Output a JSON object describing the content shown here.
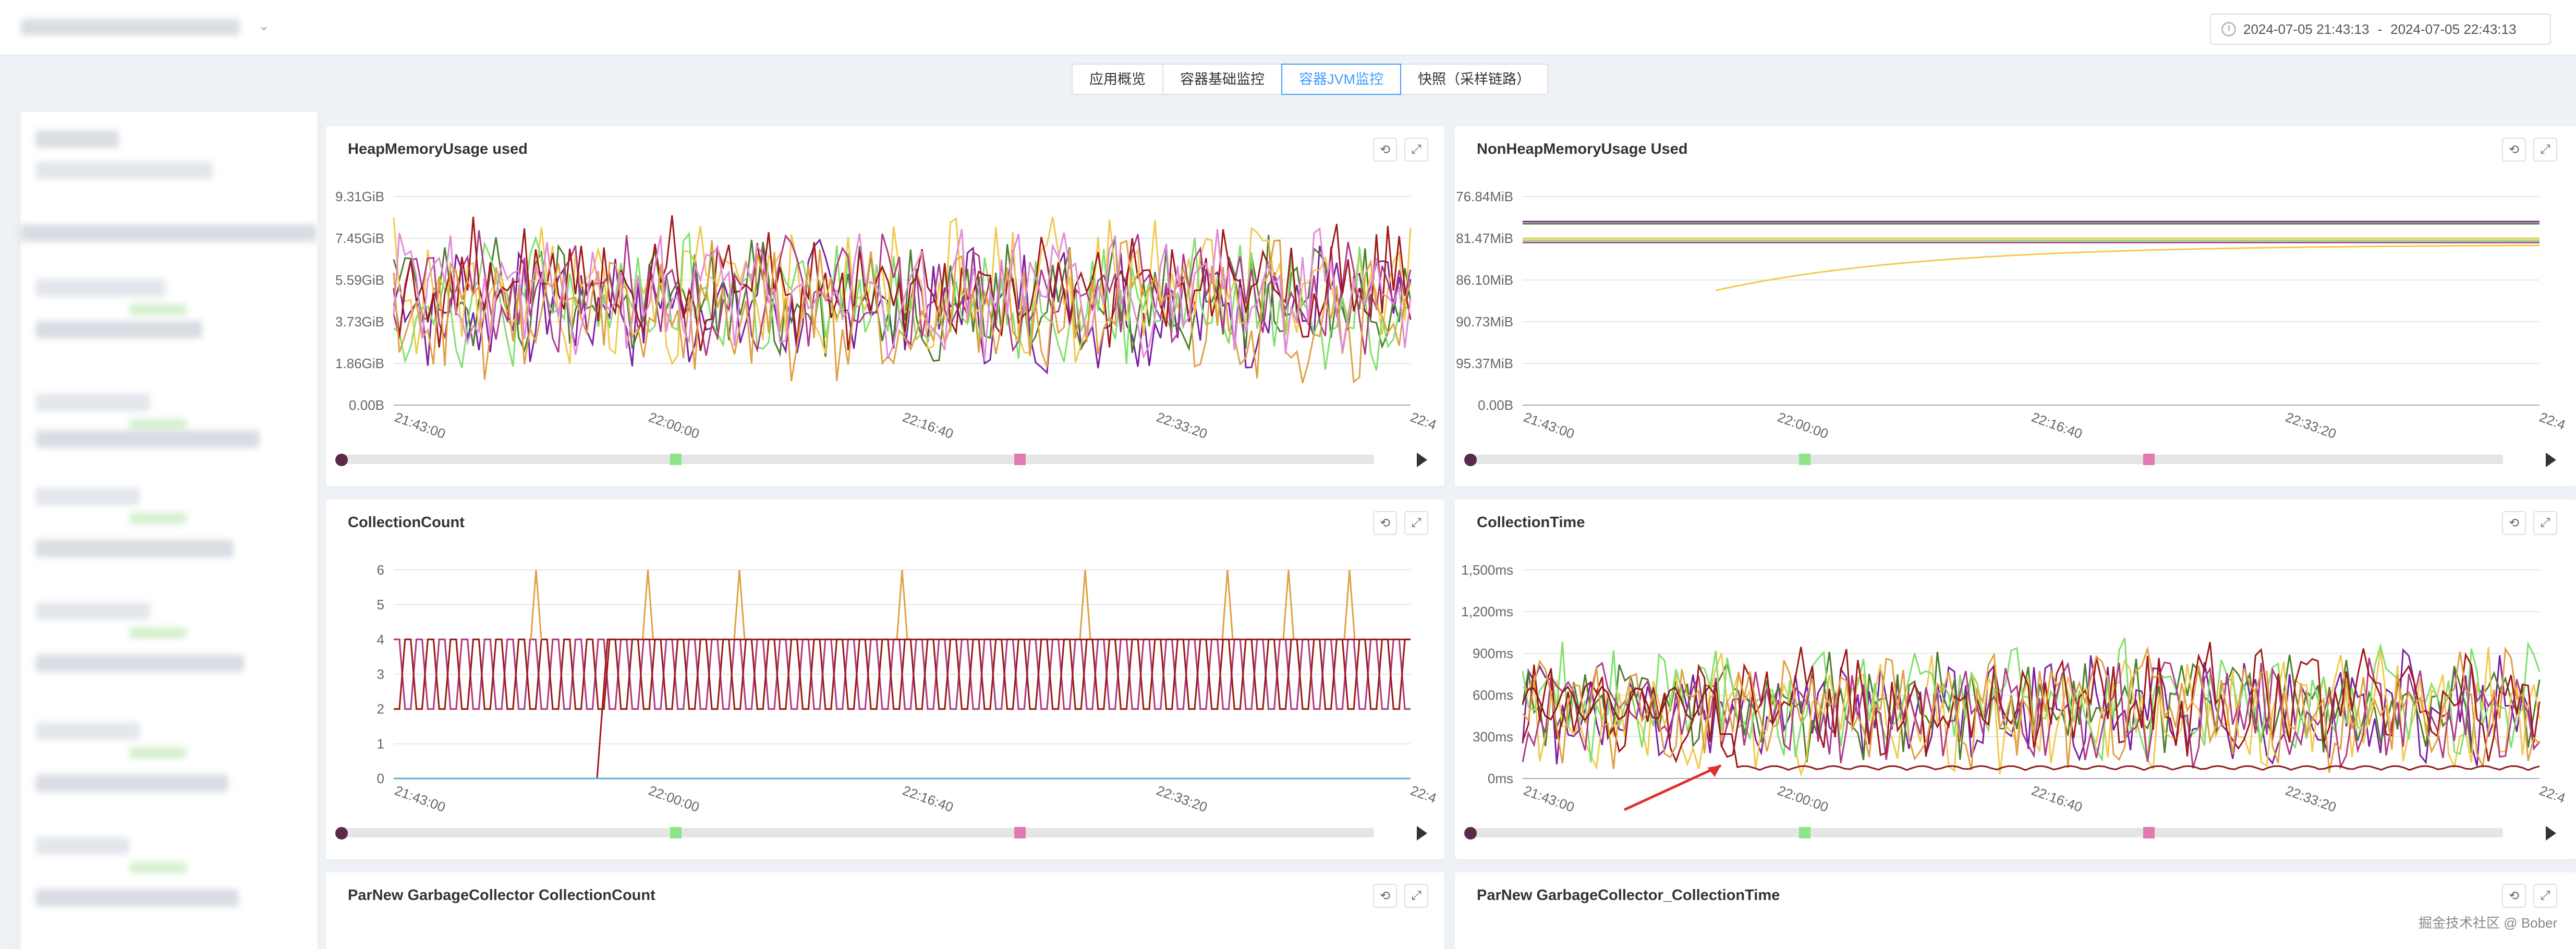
{
  "time_range": {
    "start": "2024-07-05 21:43:13",
    "separator": "-",
    "end": "2024-07-05 22:43:13"
  },
  "tabs": [
    {
      "label": "应用概览",
      "active": false
    },
    {
      "label": "容器基础监控",
      "active": false
    },
    {
      "label": "容器JVM监控",
      "active": true
    },
    {
      "label": "快照（采样链路）",
      "active": false
    }
  ],
  "colors": {
    "series": [
      "#7b1fa2",
      "#4a7f2a",
      "#f2c94c",
      "#7fe06a",
      "#b03a8a",
      "#a01818",
      "#e0a040",
      "#e08ad8"
    ],
    "accent": "#409eff",
    "arrow": "#e0302a"
  },
  "icons": {
    "refresh": "refresh-icon",
    "zoom": "zoom-reset-icon",
    "clock": "clock-icon",
    "play": "play-icon"
  },
  "watermark": "掘金技术社区 @ Bober",
  "chart_data": [
    {
      "type": "line",
      "title": "HeapMemoryUsage used",
      "y_ticks": [
        "9.31GiB",
        "7.45GiB",
        "5.59GiB",
        "3.73GiB",
        "1.86GiB",
        "0.00B"
      ],
      "x_ticks": [
        "21:43:00",
        "22:00:00",
        "22:16:40",
        "22:33:20",
        "22:4"
      ],
      "ylim": [
        0,
        9.31
      ],
      "y_unit": "GiB",
      "series_count": 8,
      "pattern": "noisy",
      "base": [
        4.5,
        4.8,
        5.2,
        4.6,
        5.0,
        5.4,
        4.2,
        4.9
      ],
      "amp": [
        2.8,
        2.6,
        3.0,
        2.7,
        2.5,
        2.9,
        3.1,
        2.6
      ]
    },
    {
      "type": "line",
      "title": "NonHeapMemoryUsage Used",
      "y_ticks": [
        "76.84MiB",
        "81.47MiB",
        "86.10MiB",
        "90.73MiB",
        "95.37MiB",
        "0.00B"
      ],
      "x_ticks": [
        "21:43:00",
        "22:00:00",
        "22:16:40",
        "22:33:20",
        "22:4"
      ],
      "series_count": 5,
      "pattern": "flat",
      "levels": [
        0.88,
        0.87,
        0.8,
        0.79,
        0.78
      ],
      "rising": {
        "from": 0.55,
        "to": 0.77,
        "start_frac": 0.19
      }
    },
    {
      "type": "line",
      "title": "CollectionCount",
      "y_ticks": [
        "6",
        "5",
        "4",
        "3",
        "2",
        "1",
        "0"
      ],
      "x_ticks": [
        "21:43:00",
        "22:00:00",
        "22:16:40",
        "22:33:20",
        "22:4"
      ],
      "ylim": [
        0,
        6
      ],
      "series_count": 6,
      "pattern": "square",
      "low": 2,
      "high": 4,
      "spikes": [
        [
          0.14,
          6
        ],
        [
          0.25,
          6
        ],
        [
          0.34,
          6
        ],
        [
          0.5,
          6
        ],
        [
          0.68,
          6
        ],
        [
          0.82,
          6
        ],
        [
          0.88,
          6
        ],
        [
          0.94,
          6
        ]
      ],
      "step": {
        "from": 0,
        "to": 2,
        "at_frac": 0.2
      }
    },
    {
      "type": "line",
      "title": "CollectionTime",
      "y_ticks": [
        "1,500ms",
        "1,200ms",
        "900ms",
        "600ms",
        "300ms",
        "0ms"
      ],
      "x_ticks": [
        "21:43:00",
        "22:00:00",
        "22:16:40",
        "22:33:20",
        "22:4"
      ],
      "ylim": [
        0,
        1500
      ],
      "y_unit": "ms",
      "series_count": 7,
      "pattern": "noisy",
      "base": [
        500,
        520,
        480,
        560,
        470,
        540,
        500
      ],
      "amp": [
        380,
        360,
        420,
        400,
        350,
        390,
        410
      ],
      "low_series": {
        "value_start": 600,
        "value_end": 60,
        "spike_frac": 0.2
      }
    }
  ],
  "bottom_panels": [
    {
      "title": "ParNew GarbageCollector CollectionCount"
    },
    {
      "title": "ParNew GarbageCollector_CollectionTime"
    }
  ]
}
